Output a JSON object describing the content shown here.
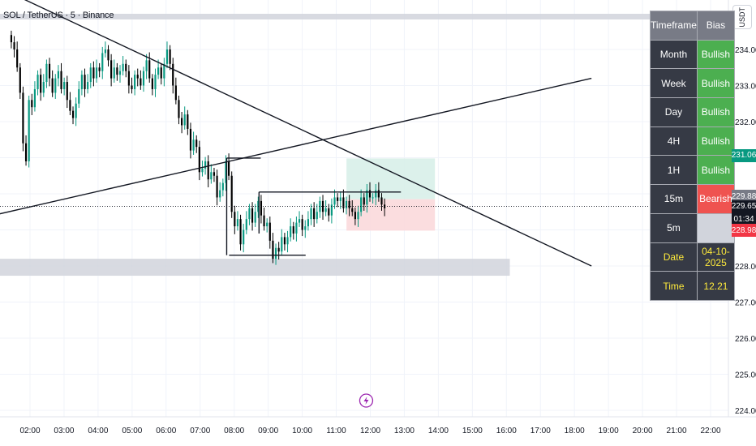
{
  "header": {
    "symbol_title": "SOL / TetherUS · 5 · Binance"
  },
  "currency_button": {
    "label": "USDT"
  },
  "colors": {
    "up": "#089981",
    "down": "#000000",
    "bullish": "#4caf50",
    "bearish": "#ef5350",
    "tag_green": "#089981",
    "tag_red": "#f23645",
    "tag_dark": "#131722",
    "tag_grey": "#787b86"
  },
  "bias_table": {
    "headers": [
      "Timeframe",
      "Bias"
    ],
    "rows": [
      {
        "tf": "Month",
        "bias": "Bullish",
        "state": "bull"
      },
      {
        "tf": "Week",
        "bias": "Bullish",
        "state": "bull"
      },
      {
        "tf": "Day",
        "bias": "Bullish",
        "state": "bull"
      },
      {
        "tf": "4H",
        "bias": "Bullish",
        "state": "bull"
      },
      {
        "tf": "1H",
        "bias": "Bullish",
        "state": "bull"
      },
      {
        "tf": "15m",
        "bias": "Bearish",
        "state": "bear"
      },
      {
        "tf": "5m",
        "bias": "",
        "state": "empty"
      }
    ],
    "date_label": "Date",
    "date_value": "04-10-2025",
    "time_label": "Time",
    "time_value": "12.21"
  },
  "price_tags": [
    {
      "text": "231.06",
      "kind": "green",
      "price": 231.06
    },
    {
      "text": "229.88",
      "kind": "grey",
      "price": 229.88
    },
    {
      "text": "229.65",
      "kind": "dark",
      "price": 229.65
    },
    {
      "text": "01:34",
      "kind": "dark",
      "price": 229.45
    },
    {
      "text": "228.98",
      "kind": "red",
      "price": 228.98
    }
  ],
  "chart_data": {
    "type": "candlestick",
    "title": "SOL / TetherUS · 5 · Binance",
    "x_ticks": [
      "02:00",
      "03:00",
      "04:00",
      "05:00",
      "06:00",
      "07:00",
      "08:00",
      "09:00",
      "10:00",
      "11:00",
      "12:00",
      "13:00",
      "14:00",
      "15:00",
      "16:00",
      "17:00",
      "18:00",
      "19:00",
      "20:00",
      "21:00",
      "22:00"
    ],
    "x_range_hours": [
      1.4,
      22.3
    ],
    "y_ticks": [
      224,
      225,
      226,
      227,
      228,
      229,
      230,
      231,
      232,
      233,
      234
    ],
    "ylim": [
      224,
      235.2
    ],
    "grid": true,
    "current_price": 229.65,
    "close_sequence": [
      234.2,
      234.0,
      233.5,
      232.8,
      231.4,
      230.9,
      232.6,
      232.4,
      232.9,
      233.3,
      232.8,
      233.1,
      233.6,
      233.2,
      232.8,
      233.2,
      233.4,
      232.9,
      233.1,
      232.6,
      232.3,
      232.1,
      232.5,
      232.9,
      233.3,
      232.9,
      233.1,
      233.5,
      233.2,
      233.5,
      233.4,
      233.9,
      234.0,
      233.7,
      233.2,
      233.5,
      233.3,
      233.4,
      233.6,
      233.4,
      233.0,
      232.9,
      233.3,
      233.2,
      233.0,
      233.4,
      233.7,
      233.2,
      232.9,
      233.3,
      233.5,
      233.2,
      233.6,
      234.0,
      233.6,
      233.0,
      232.6,
      232.1,
      231.9,
      232.2,
      231.8,
      231.2,
      231.5,
      231.3,
      230.6,
      230.7,
      230.9,
      230.4,
      230.6,
      230.5,
      229.9,
      230.1,
      230.3,
      230.9,
      230.5,
      229.5,
      229.1,
      229.3,
      228.6,
      229.0,
      229.3,
      229.6,
      229.2,
      229.5,
      229.8,
      229.4,
      229.1,
      229.2,
      228.7,
      228.2,
      228.5,
      228.4,
      228.8,
      228.6,
      228.8,
      229.1,
      228.9,
      229.2,
      229.3,
      229.0,
      229.1,
      229.3,
      229.6,
      229.3,
      229.5,
      229.8,
      229.5,
      229.6,
      229.4,
      229.7,
      229.9,
      229.8,
      229.9,
      229.6,
      229.8,
      229.6,
      229.5,
      229.3,
      229.5,
      229.9,
      229.7,
      230.1,
      229.9,
      229.9,
      230.1,
      229.9,
      229.7,
      229.6
    ],
    "lines": [
      {
        "name": "descending-trendline",
        "from": [
          0.9,
          235.8
        ],
        "to": [
          18.5,
          228.0
        ]
      },
      {
        "name": "ascending-trendline",
        "from": [
          0.9,
          229.4
        ],
        "to": [
          18.5,
          233.2
        ]
      },
      {
        "name": "range-top",
        "from": [
          7.78,
          230.99
        ],
        "to": [
          8.78,
          230.99
        ]
      },
      {
        "name": "box-top",
        "from": [
          8.73,
          230.05
        ],
        "to": [
          12.9,
          230.05
        ]
      },
      {
        "name": "range-bottom",
        "from": [
          7.85,
          228.3
        ],
        "to": [
          10.1,
          228.3
        ]
      }
    ],
    "zones": [
      {
        "name": "demand-zone",
        "x": [
          1.0,
          16.1
        ],
        "y": [
          227.73,
          228.2
        ]
      },
      {
        "name": "target-zone",
        "x": [
          11.3,
          13.9
        ],
        "y": [
          229.85,
          230.98
        ]
      },
      {
        "name": "stop-zone",
        "x": [
          11.3,
          13.9
        ],
        "y": [
          228.98,
          229.85
        ]
      }
    ]
  }
}
